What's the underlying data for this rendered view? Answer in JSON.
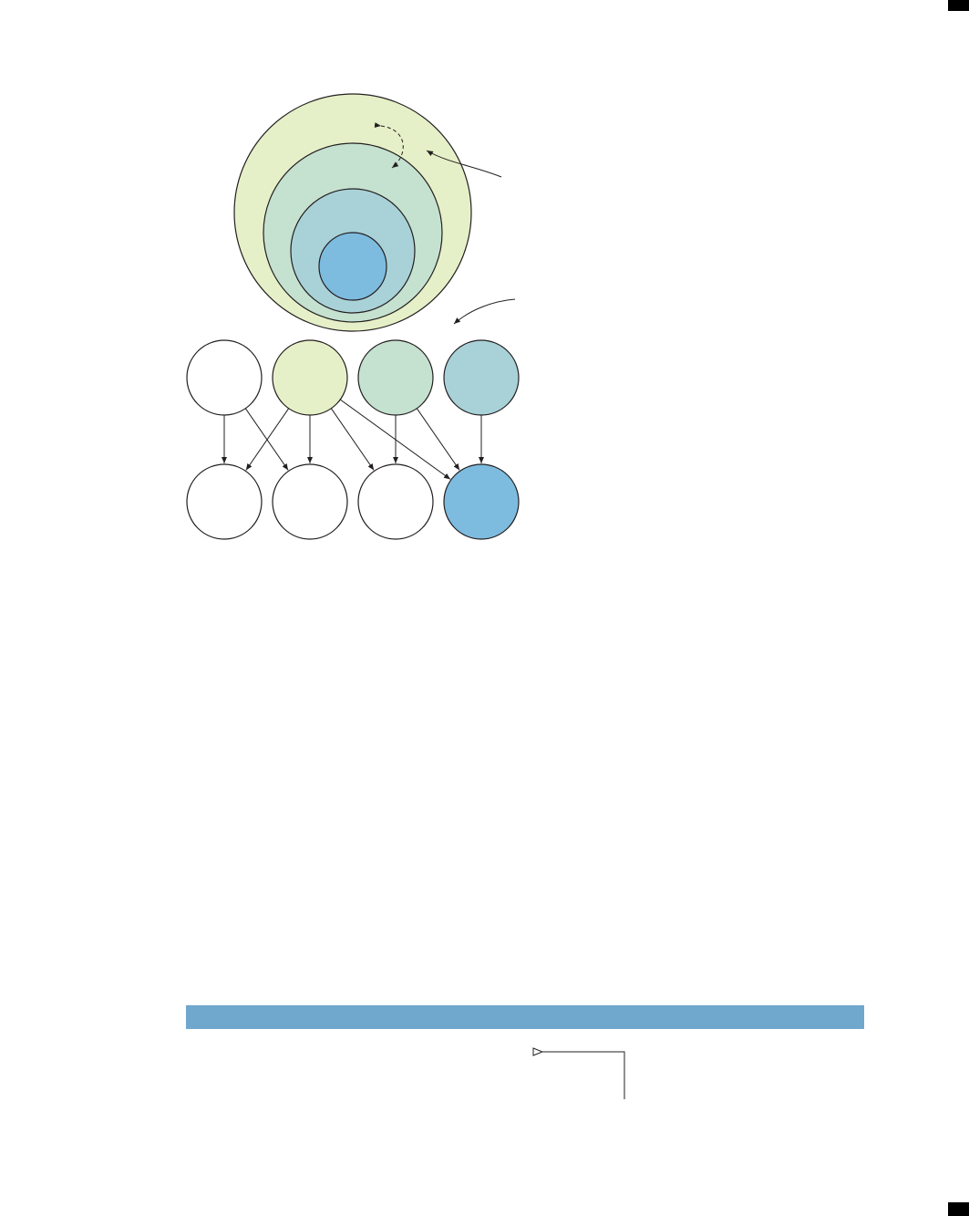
{
  "colors": {
    "light_green": "#e6f0c8",
    "sage": "#c5e1d0",
    "pale_blue": "#a9d2d8",
    "blue": "#7dbbdf",
    "white": "#ffffff",
    "stroke": "#231f20",
    "band": "#6fa7cd",
    "edge": "#000000"
  },
  "nested_circles": [
    {
      "id": "outer",
      "color": "light_green"
    },
    {
      "id": "second",
      "color": "sage"
    },
    {
      "id": "third",
      "color": "pale_blue"
    },
    {
      "id": "core",
      "color": "blue"
    }
  ],
  "top_row_nodes": [
    {
      "id": "top-1",
      "color": "white"
    },
    {
      "id": "top-2",
      "color": "light_green"
    },
    {
      "id": "top-3",
      "color": "sage"
    },
    {
      "id": "top-4",
      "color": "pale_blue"
    }
  ],
  "bottom_row_nodes": [
    {
      "id": "bottom-1",
      "color": "white"
    },
    {
      "id": "bottom-2",
      "color": "white"
    },
    {
      "id": "bottom-3",
      "color": "white"
    },
    {
      "id": "bottom-4",
      "color": "blue"
    }
  ],
  "edges": [
    {
      "from": "top-1",
      "to": "bottom-1"
    },
    {
      "from": "top-1",
      "to": "bottom-2"
    },
    {
      "from": "top-2",
      "to": "bottom-1"
    },
    {
      "from": "top-2",
      "to": "bottom-2"
    },
    {
      "from": "top-2",
      "to": "bottom-3"
    },
    {
      "from": "top-2",
      "to": "bottom-4"
    },
    {
      "from": "top-3",
      "to": "bottom-3"
    },
    {
      "from": "top-3",
      "to": "bottom-4"
    },
    {
      "from": "top-4",
      "to": "bottom-4"
    }
  ]
}
